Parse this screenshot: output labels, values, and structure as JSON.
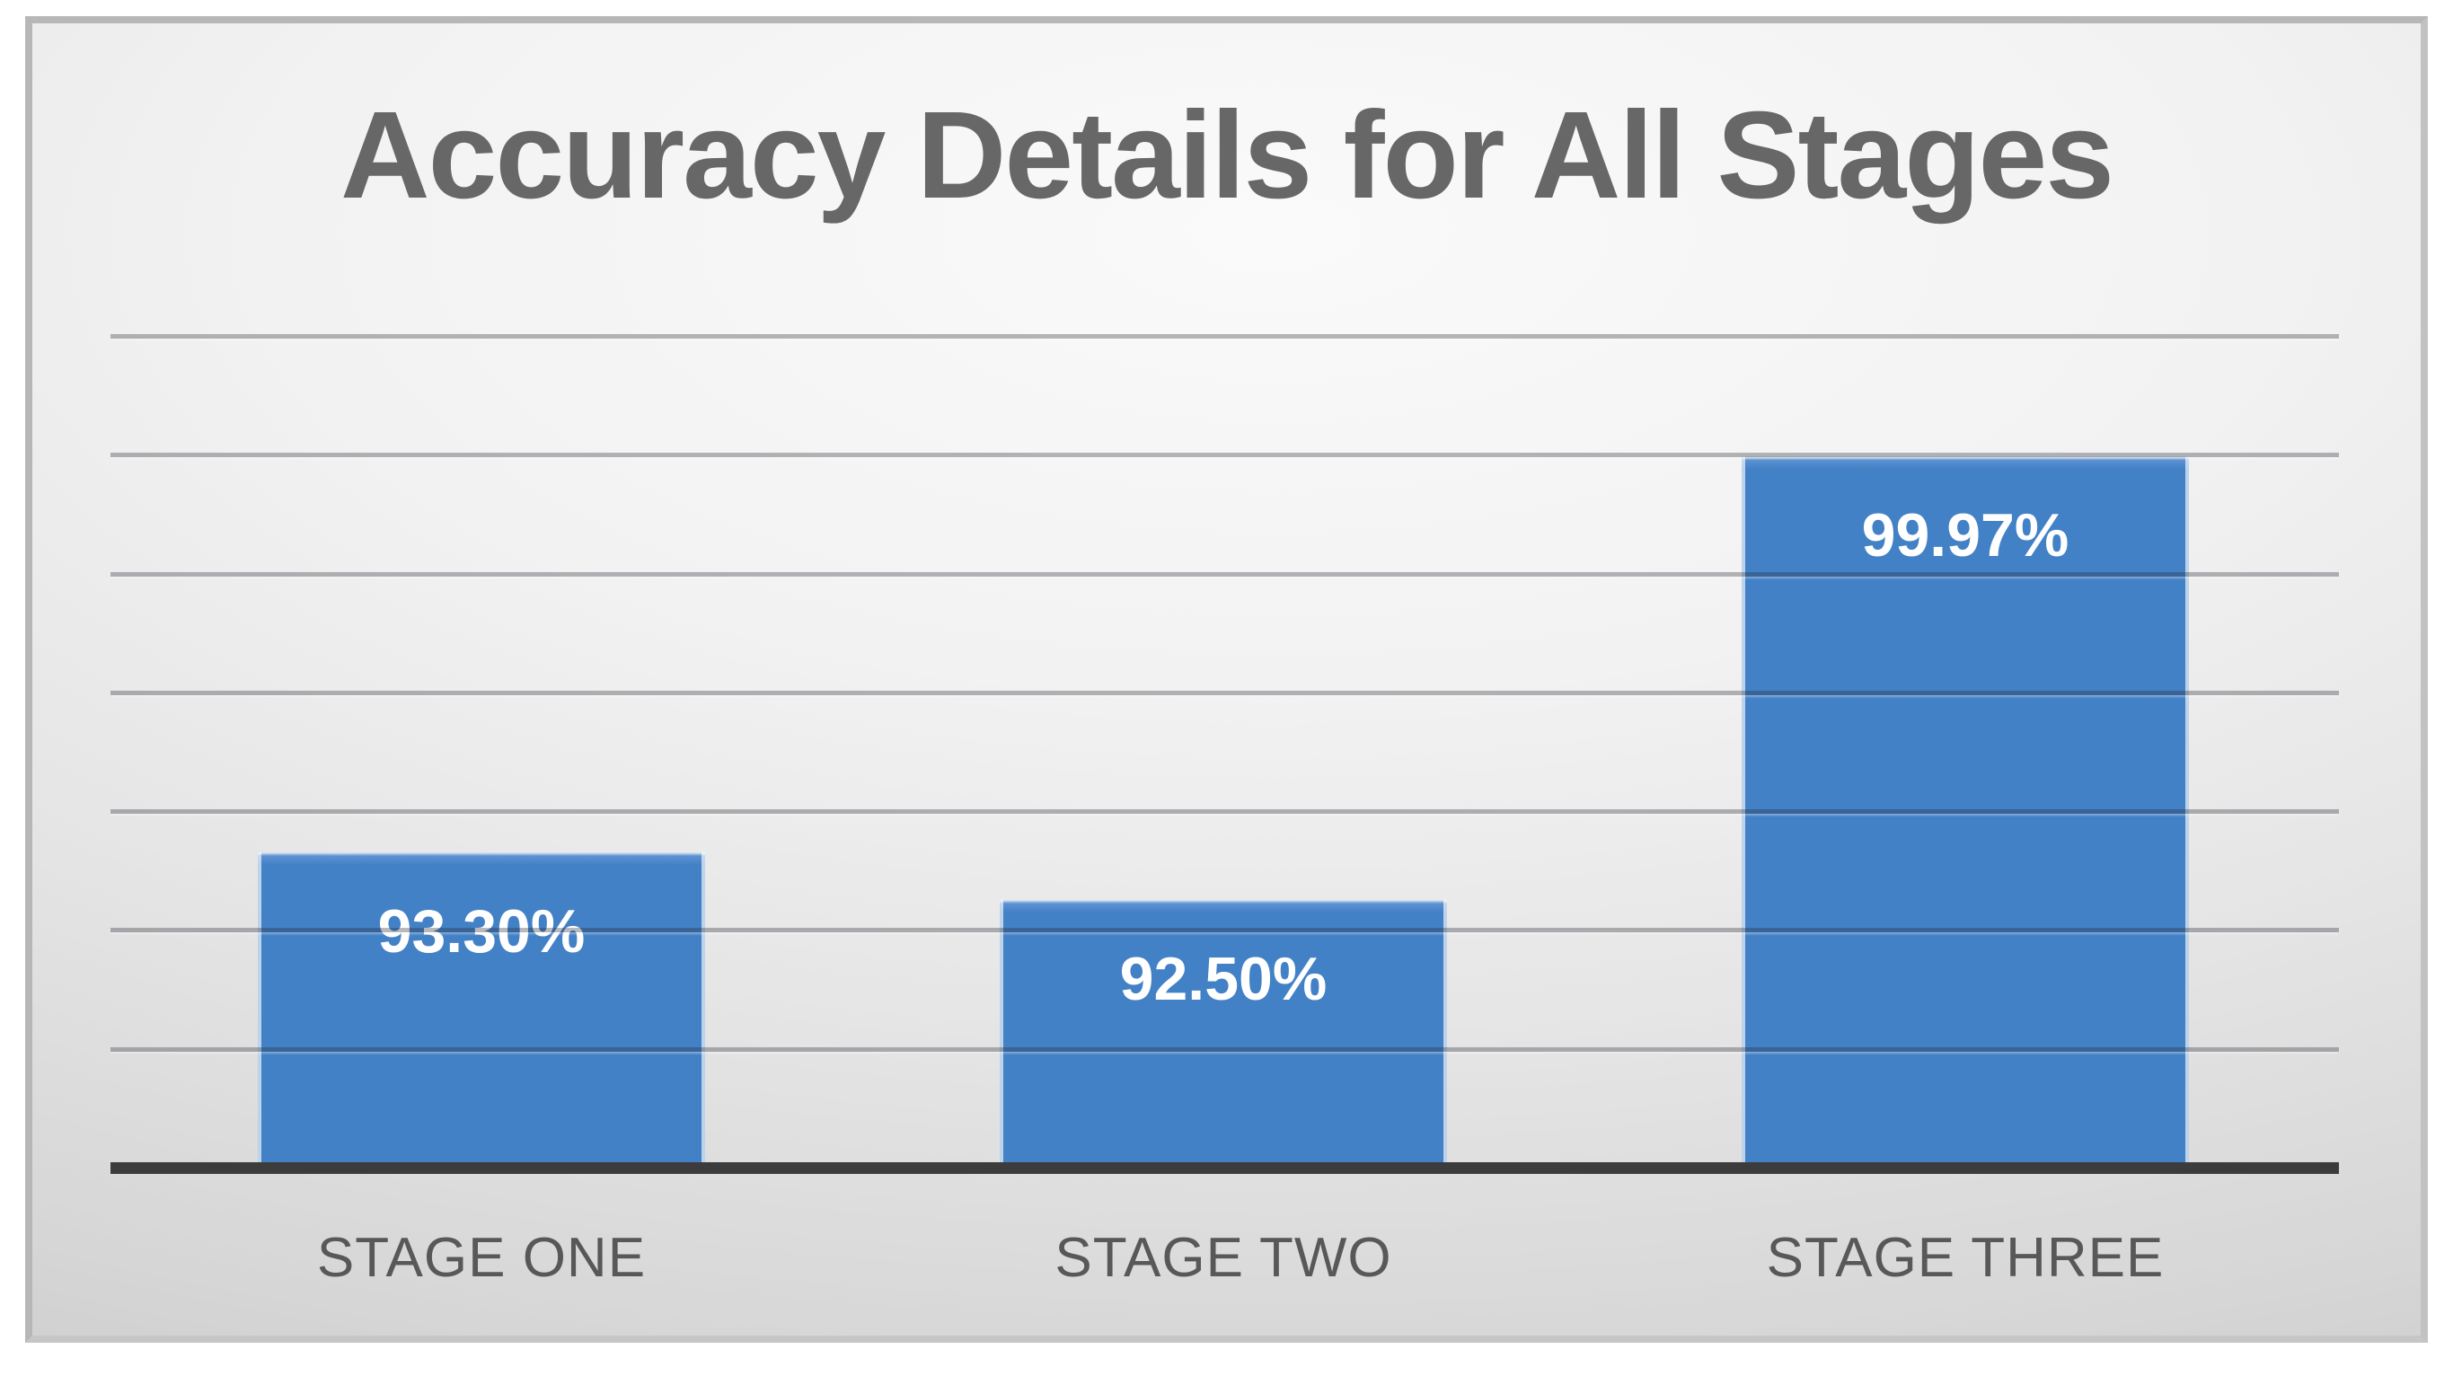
{
  "chart": {
    "title": "Accuracy Details for All Stages"
  },
  "chart_data": {
    "type": "bar",
    "title": "Accuracy Details for All Stages",
    "categories": [
      "STAGE ONE",
      "STAGE TWO",
      "STAGE THREE"
    ],
    "values": [
      93.3,
      92.5,
      99.97
    ],
    "value_labels": [
      "93.30%",
      "92.50%",
      "99.97%"
    ],
    "xlabel": "",
    "ylabel": "",
    "ylim": [
      88,
      102
    ],
    "gridline_count": 7,
    "gridline_step_pct": 2,
    "axis_tick_labels_visible": false,
    "legend": "none",
    "grid": "horizontal",
    "colors": {
      "bar_fill": "#4281c6",
      "bar_edge_highlight": "#ffffff",
      "value_label": "#ffffff",
      "axis_line": "#3c3c3c",
      "gridline": "#a5a7aa",
      "title": "#676767",
      "category_label": "#585858",
      "frame_border": "#b7b7b7",
      "background_center": "#fafafa",
      "background_corner": "#c0c0c0",
      "page_background": "#ffffff"
    }
  }
}
